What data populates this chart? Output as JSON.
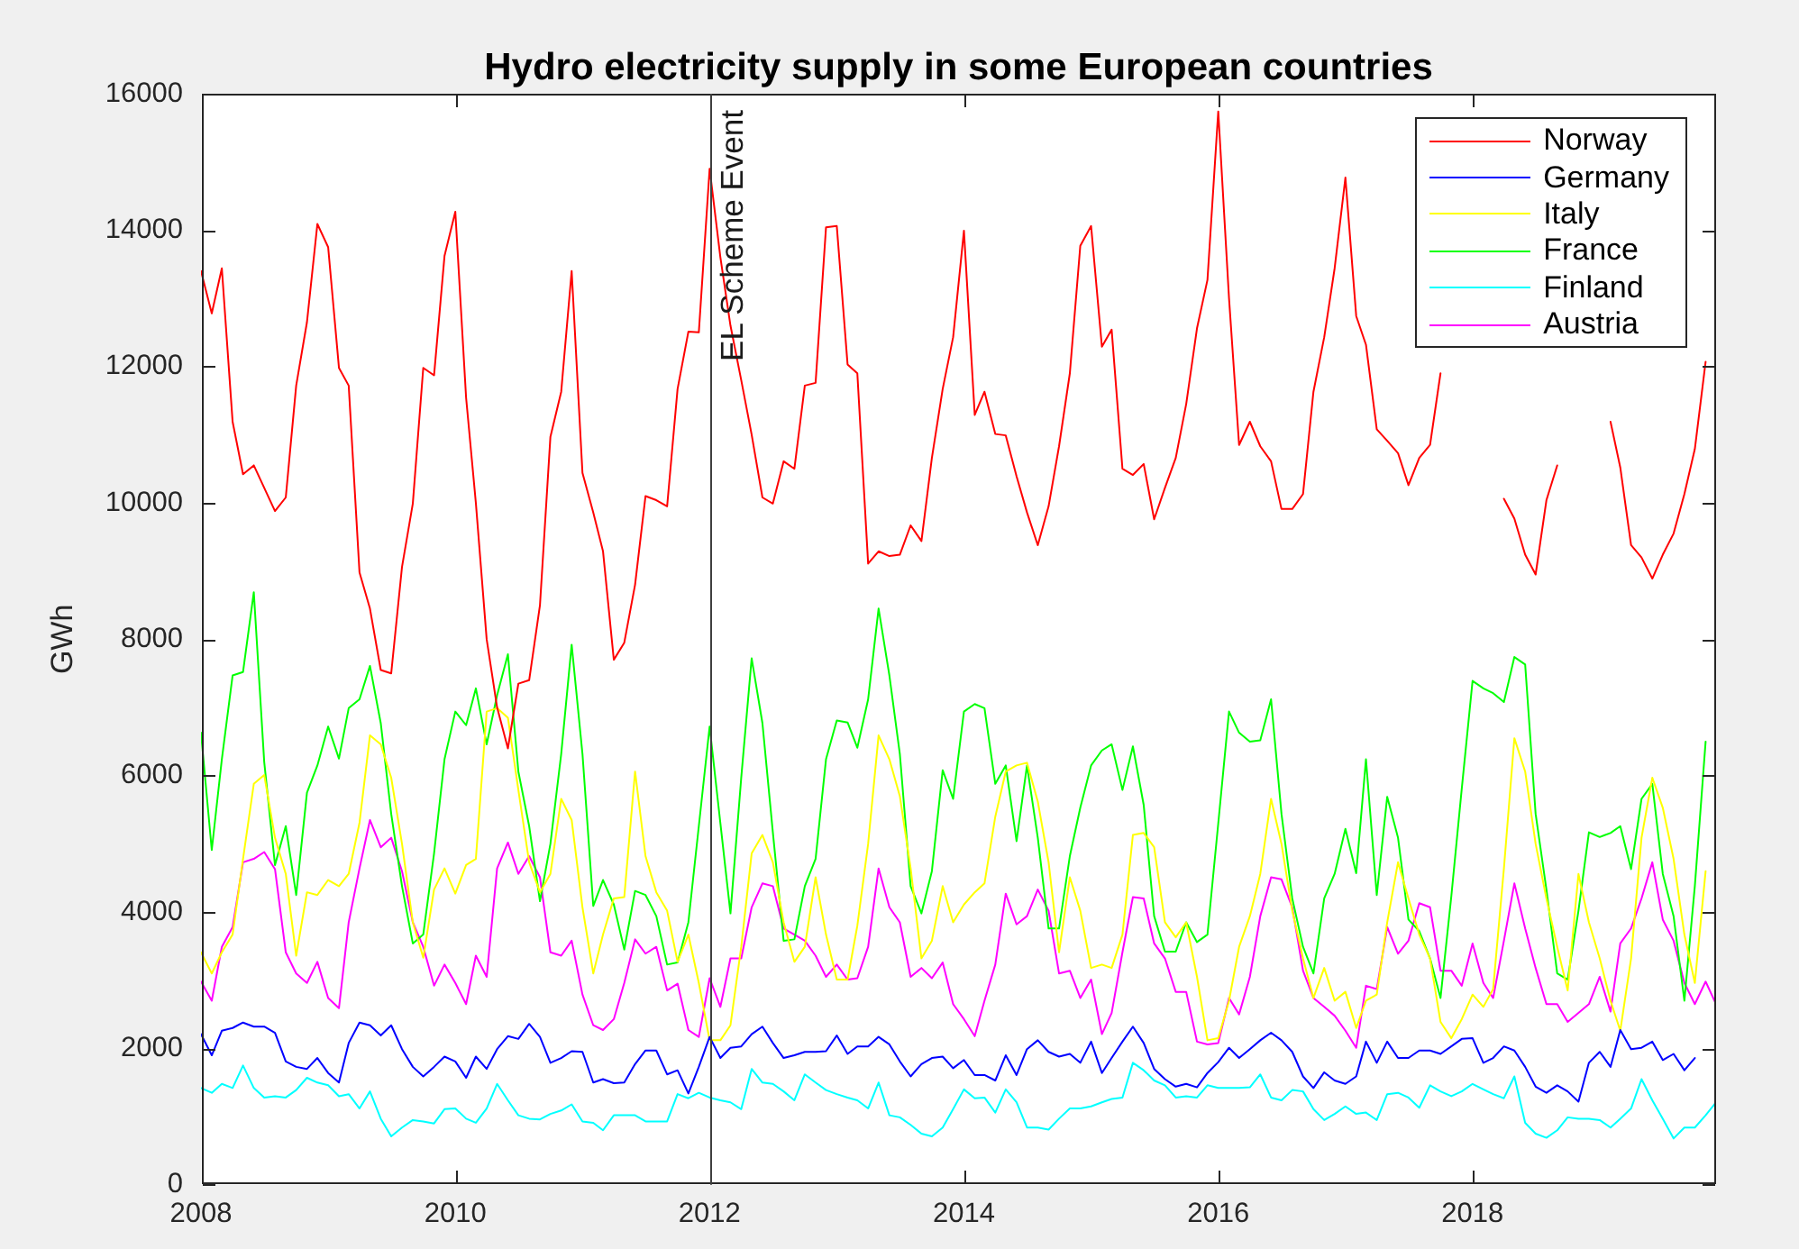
{
  "chart_data": {
    "type": "line",
    "title": "Hydro electricity supply in some European countries",
    "ylabel": "GWh",
    "x": [
      "2008-01",
      "2008-02",
      "2008-03",
      "2008-04",
      "2008-05",
      "2008-06",
      "2008-07",
      "2008-08",
      "2008-09",
      "2008-10",
      "2008-11",
      "2008-12",
      "2009-01",
      "2009-02",
      "2009-03",
      "2009-04",
      "2009-05",
      "2009-06",
      "2009-07",
      "2009-08",
      "2009-09",
      "2009-10",
      "2009-11",
      "2009-12",
      "2010-01",
      "2010-02",
      "2010-03",
      "2010-04",
      "2010-05",
      "2010-06",
      "2010-07",
      "2010-08",
      "2010-09",
      "2010-10",
      "2010-11",
      "2010-12",
      "2011-01",
      "2011-02",
      "2011-03",
      "2011-04",
      "2011-05",
      "2011-06",
      "2011-07",
      "2011-08",
      "2011-09",
      "2011-10",
      "2011-11",
      "2011-12",
      "2012-01",
      "2012-02",
      "2012-03",
      "2012-04",
      "2012-05",
      "2012-06",
      "2012-07",
      "2012-08",
      "2012-09",
      "2012-10",
      "2012-11",
      "2012-12",
      "2013-01",
      "2013-02",
      "2013-03",
      "2013-04",
      "2013-05",
      "2013-06",
      "2013-07",
      "2013-08",
      "2013-09",
      "2013-10",
      "2013-11",
      "2013-12",
      "2014-01",
      "2014-02",
      "2014-03",
      "2014-04",
      "2014-05",
      "2014-06",
      "2014-07",
      "2014-08",
      "2014-09",
      "2014-10",
      "2014-11",
      "2014-12",
      "2015-01",
      "2015-02",
      "2015-03",
      "2015-04",
      "2015-05",
      "2015-06",
      "2015-07",
      "2015-08",
      "2015-09",
      "2015-10",
      "2015-11",
      "2015-12",
      "2016-01",
      "2016-02",
      "2016-03",
      "2016-04",
      "2016-05",
      "2016-06",
      "2016-07",
      "2016-08",
      "2016-09",
      "2016-10",
      "2016-11",
      "2016-12",
      "2017-01",
      "2017-02",
      "2017-03",
      "2017-04",
      "2017-05",
      "2017-06",
      "2017-07",
      "2017-08",
      "2017-09",
      "2017-10",
      "2017-11",
      "2017-12",
      "2018-01",
      "2018-02",
      "2018-03",
      "2018-04",
      "2018-05",
      "2018-06",
      "2018-07",
      "2018-08",
      "2018-09",
      "2018-10",
      "2018-11",
      "2018-12",
      "2019-01",
      "2019-02",
      "2019-03",
      "2019-04",
      "2019-05",
      "2019-06",
      "2019-07",
      "2019-08",
      "2019-09",
      "2019-10",
      "2019-11",
      "2019-12"
    ],
    "series": [
      {
        "name": "Norway",
        "color": "#ff0000",
        "values": [
          13400,
          12780,
          13440,
          11190,
          10420,
          10550,
          10220,
          9880,
          10080,
          11720,
          12650,
          14090,
          13750,
          11980,
          11720,
          8980,
          8450,
          7550,
          7500,
          9060,
          9990,
          11980,
          11870,
          13620,
          14270,
          11540,
          10000,
          8000,
          7000,
          6400,
          7350,
          7400,
          8500,
          10970,
          11630,
          13400,
          10440,
          9860,
          9290,
          7700,
          7950,
          8800,
          10100,
          10040,
          9950,
          11670,
          12510,
          12500,
          14900,
          13600,
          12600,
          11800,
          11000,
          10080,
          9990,
          10610,
          10500,
          11720,
          11760,
          14040,
          14060,
          12030,
          11900,
          9110,
          9290,
          9220,
          9240,
          9670,
          9440,
          10660,
          11670,
          12430,
          13990,
          11290,
          11630,
          11010,
          10990,
          10390,
          9860,
          9380,
          9950,
          10830,
          11900,
          13770,
          14060,
          12290,
          12540,
          10500,
          10410,
          10570,
          9760,
          10220,
          10660,
          11450,
          12560,
          13270,
          15740,
          13000,
          10850,
          11190,
          10830,
          10610,
          9910,
          9910,
          10130,
          11630,
          12430,
          13440,
          14770,
          12740,
          12320,
          11080,
          10910,
          10730,
          10260,
          10660,
          10850,
          11900,
          null,
          null,
          null,
          null,
          null,
          10060,
          9770,
          9240,
          8950,
          10040,
          10550,
          null,
          null,
          null,
          null,
          11190,
          10520,
          9380,
          9200,
          8890,
          9240,
          9550,
          10130,
          10790,
          12070,
          null
        ]
      },
      {
        "name": "Germany",
        "color": "#0000ff",
        "values": [
          2210,
          1900,
          2260,
          2300,
          2380,
          2320,
          2320,
          2230,
          1810,
          1730,
          1700,
          1860,
          1640,
          1500,
          2080,
          2380,
          2340,
          2190,
          2340,
          1990,
          1730,
          1590,
          1730,
          1880,
          1810,
          1570,
          1880,
          1700,
          1990,
          2180,
          2140,
          2360,
          2170,
          1790,
          1860,
          1960,
          1950,
          1500,
          1550,
          1490,
          1500,
          1770,
          1970,
          1970,
          1620,
          1680,
          1340,
          1730,
          2170,
          1860,
          2010,
          2030,
          2210,
          2320,
          2080,
          1860,
          1900,
          1950,
          1950,
          1960,
          2190,
          1920,
          2030,
          2030,
          2170,
          2060,
          1810,
          1590,
          1770,
          1860,
          1880,
          1710,
          1830,
          1610,
          1610,
          1530,
          1900,
          1610,
          1990,
          2120,
          1950,
          1880,
          1920,
          1790,
          2100,
          1640,
          1860,
          2100,
          2320,
          2080,
          1700,
          1550,
          1440,
          1480,
          1430,
          1640,
          1800,
          2010,
          1860,
          1990,
          2120,
          2230,
          2120,
          1950,
          1590,
          1420,
          1650,
          1530,
          1480,
          1590,
          2100,
          1790,
          2100,
          1860,
          1860,
          1970,
          1970,
          1920,
          2030,
          2140,
          2150,
          1790,
          1860,
          2030,
          1970,
          1730,
          1440,
          1350,
          1460,
          1370,
          1220,
          1790,
          1950,
          1730,
          2270,
          1990,
          2010,
          2100,
          1830,
          1920,
          1680,
          1860,
          null,
          null
        ]
      },
      {
        "name": "Italy",
        "color": "#ffff00",
        "values": [
          3410,
          3100,
          3410,
          3670,
          4780,
          5880,
          6010,
          5090,
          4560,
          3360,
          4290,
          4250,
          4470,
          4380,
          4560,
          5310,
          6590,
          6460,
          5970,
          5000,
          3850,
          3330,
          4330,
          4640,
          4270,
          4690,
          4780,
          6940,
          6990,
          6850,
          5790,
          4730,
          4290,
          4560,
          5660,
          5350,
          4070,
          3100,
          3670,
          4200,
          4220,
          6060,
          4820,
          4290,
          4020,
          3270,
          3670,
          2960,
          2120,
          2120,
          2340,
          3490,
          4860,
          5130,
          4730,
          3850,
          3270,
          3490,
          4510,
          3670,
          3010,
          3010,
          3800,
          5000,
          6590,
          6240,
          5700,
          4640,
          3320,
          3580,
          4380,
          3850,
          4110,
          4290,
          4420,
          5400,
          6060,
          6150,
          6190,
          5620,
          4730,
          3410,
          4510,
          4020,
          3180,
          3230,
          3180,
          3670,
          5130,
          5160,
          4950,
          3850,
          3630,
          3850,
          3050,
          2120,
          2150,
          2700,
          3490,
          3940,
          4560,
          5660,
          5000,
          4020,
          3320,
          2740,
          3180,
          2700,
          2830,
          2300,
          2700,
          2790,
          3850,
          4730,
          4200,
          3670,
          3320,
          2390,
          2150,
          2430,
          2790,
          2610,
          2870,
          4640,
          6550,
          6060,
          5000,
          4200,
          3490,
          2850,
          4560,
          3850,
          3320,
          2700,
          2260,
          3320,
          5090,
          5970,
          5530,
          4780,
          3670,
          2960,
          4600,
          null
        ]
      },
      {
        "name": "France",
        "color": "#00ff00",
        "values": [
          6630,
          4910,
          6240,
          7470,
          7520,
          8690,
          6200,
          4690,
          5260,
          4250,
          5750,
          6150,
          6720,
          6250,
          6990,
          7120,
          7610,
          6770,
          5440,
          4380,
          3540,
          3670,
          4860,
          6240,
          6940,
          6740,
          7280,
          6460,
          7180,
          7780,
          6060,
          5260,
          4160,
          5000,
          6320,
          7920,
          6320,
          4090,
          4470,
          4110,
          3450,
          4310,
          4250,
          3940,
          3230,
          3260,
          3850,
          5260,
          6720,
          5300,
          3980,
          5970,
          7720,
          6770,
          5170,
          3580,
          3600,
          4380,
          4780,
          6240,
          6810,
          6780,
          6410,
          7120,
          8450,
          7470,
          6320,
          4380,
          3980,
          4600,
          6080,
          5660,
          6940,
          7050,
          6990,
          5880,
          6150,
          5040,
          6150,
          5090,
          3760,
          3760,
          4820,
          5530,
          6150,
          6370,
          6460,
          5790,
          6430,
          5570,
          3940,
          3420,
          3420,
          3850,
          3560,
          3670,
          5300,
          6940,
          6630,
          6500,
          6520,
          7120,
          5440,
          4200,
          3490,
          3100,
          4200,
          4560,
          5220,
          4570,
          6240,
          4250,
          5690,
          5090,
          3890,
          3720,
          3320,
          2740,
          4230,
          5810,
          7390,
          7280,
          7210,
          7080,
          7740,
          7630,
          5440,
          4330,
          3100,
          3010,
          4020,
          5170,
          5100,
          5160,
          5260,
          4630,
          5660,
          5880,
          4560,
          3940,
          2700,
          4380,
          6500,
          null
        ]
      },
      {
        "name": "Finland",
        "color": "#00ffff",
        "values": [
          1420,
          1350,
          1480,
          1420,
          1750,
          1420,
          1280,
          1300,
          1280,
          1390,
          1570,
          1500,
          1460,
          1300,
          1330,
          1120,
          1370,
          970,
          710,
          840,
          950,
          930,
          900,
          1110,
          1120,
          970,
          910,
          1120,
          1480,
          1240,
          1020,
          970,
          960,
          1040,
          1090,
          1180,
          930,
          910,
          800,
          1020,
          1020,
          1020,
          930,
          930,
          930,
          1330,
          1270,
          1350,
          1280,
          1240,
          1210,
          1110,
          1700,
          1500,
          1480,
          1370,
          1240,
          1620,
          1500,
          1390,
          1330,
          1280,
          1240,
          1120,
          1500,
          1020,
          990,
          880,
          750,
          710,
          840,
          1110,
          1400,
          1270,
          1280,
          1060,
          1400,
          1210,
          840,
          840,
          810,
          970,
          1120,
          1120,
          1150,
          1210,
          1260,
          1280,
          1790,
          1680,
          1530,
          1460,
          1280,
          1300,
          1280,
          1460,
          1420,
          1420,
          1420,
          1430,
          1620,
          1280,
          1240,
          1390,
          1370,
          1110,
          950,
          1040,
          1150,
          1040,
          1060,
          950,
          1330,
          1350,
          1280,
          1130,
          1460,
          1370,
          1300,
          1370,
          1480,
          1400,
          1330,
          1270,
          1590,
          910,
          750,
          690,
          800,
          990,
          970,
          970,
          950,
          840,
          970,
          1120,
          1550,
          1240,
          970,
          680,
          840,
          840,
          1020,
          1210
        ]
      },
      {
        "name": "Austria",
        "color": "#ff00ff",
        "values": [
          2980,
          2700,
          3490,
          3780,
          4730,
          4780,
          4880,
          4630,
          3410,
          3100,
          2960,
          3270,
          2740,
          2590,
          3850,
          4640,
          5350,
          4950,
          5090,
          4600,
          3850,
          3490,
          2920,
          3230,
          2960,
          2650,
          3360,
          3050,
          4640,
          5020,
          4560,
          4820,
          4510,
          3410,
          3360,
          3580,
          2790,
          2340,
          2270,
          2430,
          2960,
          3600,
          3390,
          3490,
          2850,
          2950,
          2270,
          2170,
          3030,
          2610,
          3320,
          3320,
          4070,
          4420,
          4380,
          3760,
          3670,
          3580,
          3360,
          3050,
          3230,
          3010,
          3030,
          3490,
          4640,
          4070,
          3850,
          3050,
          3180,
          3030,
          3260,
          2650,
          2430,
          2180,
          2700,
          3230,
          4270,
          3820,
          3940,
          4330,
          4020,
          3100,
          3140,
          2740,
          3010,
          2210,
          2520,
          3410,
          4220,
          4200,
          3540,
          3320,
          2830,
          2830,
          2100,
          2060,
          2080,
          2740,
          2500,
          3050,
          3940,
          4510,
          4480,
          4070,
          3140,
          2740,
          2610,
          2480,
          2260,
          2010,
          2920,
          2870,
          3780,
          3390,
          3580,
          4130,
          4070,
          3140,
          3140,
          2920,
          3540,
          2960,
          2740,
          3580,
          4420,
          3760,
          3180,
          2650,
          2650,
          2390,
          2520,
          2650,
          3050,
          2540,
          3540,
          3760,
          4200,
          4730,
          3890,
          3580,
          2960,
          2650,
          2980,
          2650
        ]
      }
    ],
    "xlim": [
      "2008-01",
      "2019-12"
    ],
    "xticks": [
      {
        "value": "2008-01",
        "label": "2008"
      },
      {
        "value": "2010-01",
        "label": "2010"
      },
      {
        "value": "2012-01",
        "label": "2012"
      },
      {
        "value": "2014-01",
        "label": "2014"
      },
      {
        "value": "2016-01",
        "label": "2016"
      },
      {
        "value": "2018-01",
        "label": "2018"
      }
    ],
    "ylim": [
      0,
      16000
    ],
    "yticks": [
      0,
      2000,
      4000,
      6000,
      8000,
      10000,
      12000,
      14000,
      16000
    ],
    "ref_lines": [
      {
        "axis": "x",
        "value": "2012-01",
        "label": "EL Scheme Event",
        "color": "#404040"
      }
    ],
    "legend": "top right"
  }
}
